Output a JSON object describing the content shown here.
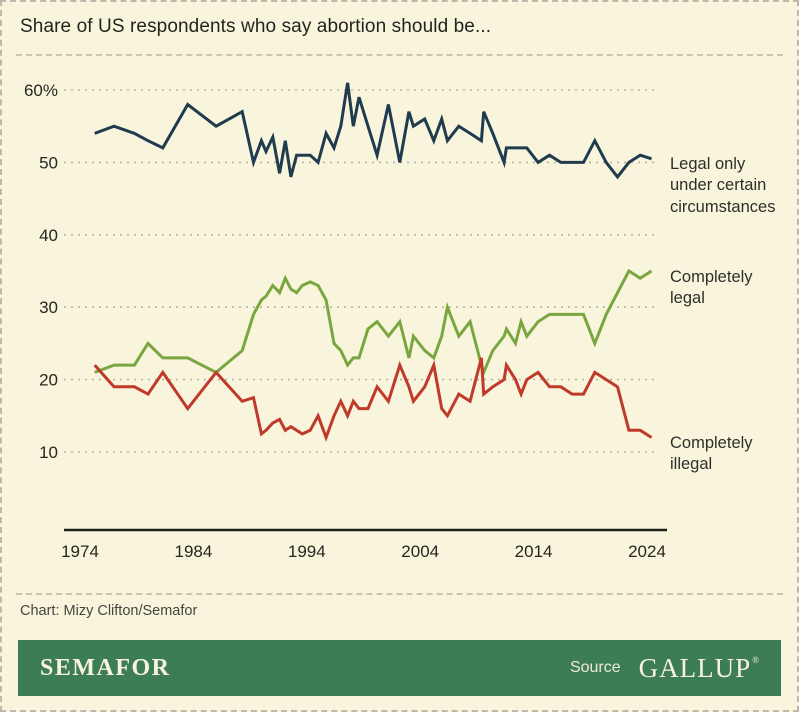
{
  "page": {
    "title": "Share of US respondents who say abortion should be...",
    "credit": "Chart: Mizy Clifton/Semafor",
    "footer": {
      "brand": "SEMAFOR",
      "source_label": "Source",
      "source_name": "GALLUP",
      "reg_mark": "®"
    },
    "colors": {
      "background": "#f9f5dd",
      "page_border": "#bcb9aa",
      "grid": "#b6b3a3",
      "axis": "#1f1f1c",
      "text_dark": "#22241f",
      "credit_text": "#45453d",
      "footer_bg": "#3d7d55",
      "footer_text": "#f7f3dc"
    }
  },
  "chart_data": {
    "type": "line",
    "title": "Share of US respondents who say abortion should be...",
    "xlabel": "",
    "ylabel": "",
    "xlim": [
      1974,
      2025.5
    ],
    "ylim": [
      8,
      63
    ],
    "grid": "horizontal dashed",
    "legend_position": "right of line ends",
    "x_ticks": [
      1974,
      1984,
      1994,
      2004,
      2014,
      2024
    ],
    "y_ticks": [
      {
        "value": 60,
        "label": "60%"
      },
      {
        "value": 50,
        "label": "50"
      },
      {
        "value": 40,
        "label": "40"
      },
      {
        "value": 30,
        "label": "30"
      },
      {
        "value": 20,
        "label": "20"
      },
      {
        "value": 10,
        "label": "10"
      }
    ],
    "x": [
      1975.3,
      1977.0,
      1978.8,
      1980.0,
      1981.3,
      1983.5,
      1986.0,
      1988.3,
      1989.3,
      1990.0,
      1990.4,
      1991.0,
      1991.6,
      1992.1,
      1992.6,
      1993.1,
      1993.6,
      1994.3,
      1995.0,
      1995.7,
      1996.4,
      1997.0,
      1997.6,
      1998.1,
      1998.6,
      1999.4,
      2000.2,
      2001.2,
      2002.2,
      2003.0,
      2003.4,
      2004.4,
      2005.2,
      2005.9,
      2006.4,
      2007.4,
      2008.4,
      2009.4,
      2009.6,
      2010.4,
      2011.4,
      2011.6,
      2012.4,
      2012.9,
      2013.4,
      2014.4,
      2015.4,
      2016.4,
      2017.4,
      2018.4,
      2019.4,
      2020.4,
      2021.4,
      2022.4,
      2023.4,
      2024.4
    ],
    "series": [
      {
        "name": "Legal only under certain circumstances",
        "color": "#1f3b4d",
        "values": [
          54,
          55,
          54,
          53,
          52,
          58,
          55,
          57,
          50,
          53,
          51.5,
          53.5,
          48.5,
          53,
          48,
          51,
          51,
          51,
          50,
          54,
          52,
          55,
          61,
          55,
          59,
          55,
          51,
          58,
          50,
          57,
          55,
          56,
          53,
          56,
          53,
          55,
          54,
          53,
          57,
          54,
          50,
          52,
          52,
          52,
          52,
          50,
          51,
          50,
          50,
          50,
          53,
          50,
          48,
          50,
          51,
          50.5
        ]
      },
      {
        "name": "Completely legal",
        "color": "#7aa63f",
        "values": [
          21,
          22,
          22,
          25,
          23,
          23,
          21,
          24,
          29,
          31,
          31.5,
          33,
          32,
          34,
          32.5,
          32,
          33,
          33.5,
          33,
          31,
          25,
          24,
          22,
          23,
          23,
          27,
          28,
          26,
          28,
          23,
          26,
          24,
          23,
          26,
          30,
          26,
          28,
          22,
          21,
          24,
          26,
          27,
          25,
          28,
          26,
          28,
          29,
          29,
          29,
          29,
          25,
          29,
          32,
          35,
          34,
          35
        ]
      },
      {
        "name": "Completely illegal",
        "color": "#bf3a2b",
        "values": [
          22,
          19,
          19,
          18,
          21,
          16,
          21,
          17,
          17.5,
          12.5,
          13,
          14,
          14.5,
          13,
          13.5,
          13,
          12.5,
          13,
          15,
          12,
          15,
          17,
          15,
          17,
          16,
          16,
          19,
          17,
          22,
          19,
          17,
          19,
          22,
          16,
          15,
          18,
          17,
          23,
          18,
          19,
          20,
          22,
          20,
          18,
          20,
          21,
          19,
          19,
          18,
          18,
          21,
          20,
          19,
          13,
          13,
          12
        ]
      }
    ]
  }
}
